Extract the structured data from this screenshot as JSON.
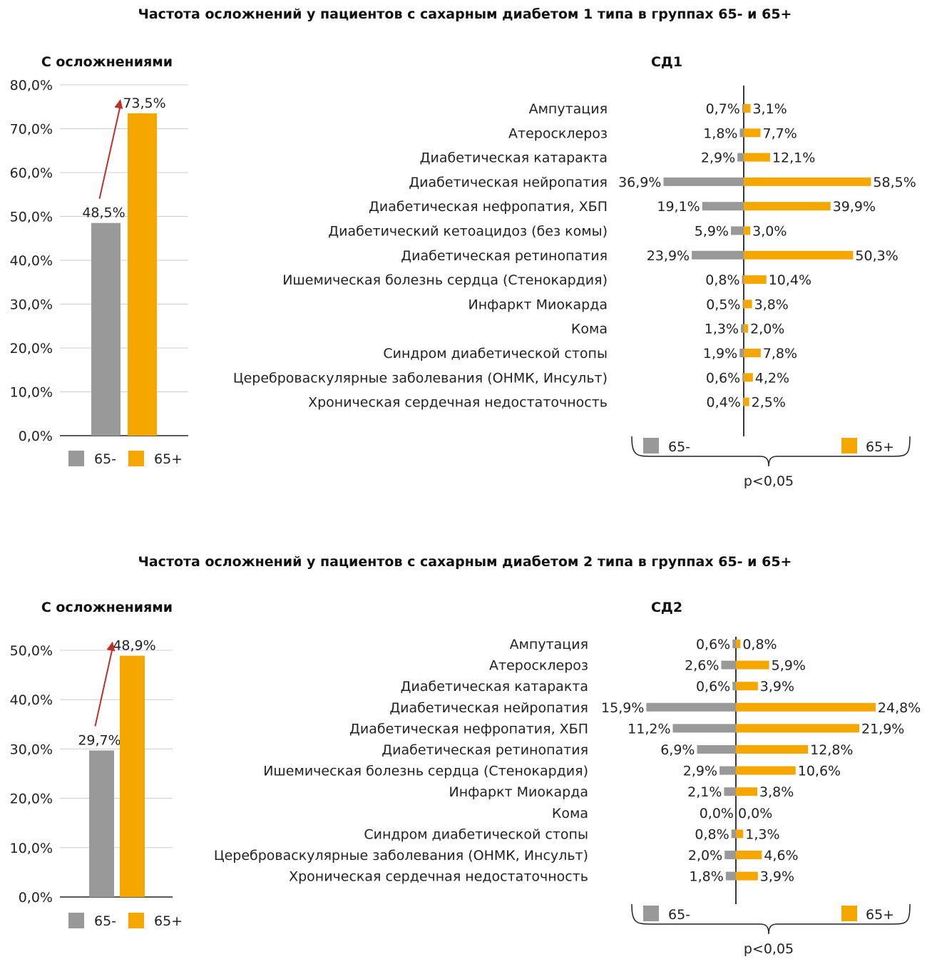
{
  "colors": {
    "group_a": "#999999",
    "group_b": "#f5a700",
    "arrow": "#c0302a",
    "grid": "#cccccc",
    "axis": "#222222"
  },
  "chart_data": [
    {
      "type": "bar",
      "title": "Частота осложнений у пациентов с сахарным диабетом 1 типа в группах 65- и 65+",
      "subtitle": "С осложнениями",
      "categories": [
        "65-",
        "65+"
      ],
      "values": [
        48.5,
        73.5
      ],
      "value_labels": [
        "48,5%",
        "73,5%"
      ],
      "ylim": [
        0,
        80
      ],
      "yticks": [
        "0,0%",
        "10,0%",
        "20,0%",
        "30,0%",
        "40,0%",
        "50,0%",
        "60,0%",
        "70,0%",
        "80,0%"
      ],
      "grid": true,
      "legend": [
        "65-",
        "65+"
      ],
      "legend_position": "bottom"
    },
    {
      "type": "bar",
      "orientation": "horizontal-diverging",
      "title": "СД1",
      "categories": [
        "Ампутация",
        "Атеросклероз",
        "Диабетическая катаракта",
        "Диабетическая нейропатия",
        "Диабетическая нефропатия, ХБП",
        "Диабетический кетоацидоз (без комы)",
        "Диабетическая ретинопатия",
        "Ишемическая болезнь сердца (Стенокардия)",
        "Инфаркт Миокарда",
        "Кома",
        "Синдром диабетической стопы",
        "Цереброваскулярные заболевания (ОНМК, Инсульт)",
        "Хроническая сердечная недостаточность"
      ],
      "series": [
        {
          "name": "65-",
          "values": [
            0.7,
            1.8,
            2.9,
            36.9,
            19.1,
            5.9,
            23.9,
            0.8,
            0.5,
            1.3,
            1.9,
            0.6,
            0.4
          ],
          "labels": [
            "0,7%",
            "1,8%",
            "2,9%",
            "36,9%",
            "19,1%",
            "5,9%",
            "23,9%",
            "0,8%",
            "0,5%",
            "1,3%",
            "1,9%",
            "0,6%",
            "0,4%"
          ]
        },
        {
          "name": "65+",
          "values": [
            3.1,
            7.7,
            12.1,
            58.5,
            39.9,
            3.0,
            50.3,
            10.4,
            3.8,
            2.0,
            7.8,
            4.2,
            2.5
          ],
          "labels": [
            "3,1%",
            "7,7%",
            "12,1%",
            "58,5%",
            "39,9%",
            "3,0%",
            "50,3%",
            "10,4%",
            "3,8%",
            "2,0%",
            "7,8%",
            "4,2%",
            "2,5%"
          ]
        }
      ],
      "annotation": "p<0,05",
      "legend_position": "bottom"
    },
    {
      "type": "bar",
      "title": "Частота осложнений у пациентов с сахарным диабетом 2 типа в группах 65- и 65+",
      "subtitle": "С осложнениями",
      "categories": [
        "65-",
        "65+"
      ],
      "values": [
        29.7,
        48.9
      ],
      "value_labels": [
        "29,7%",
        "48,9%"
      ],
      "ylim": [
        0,
        50
      ],
      "yticks": [
        "0,0%",
        "10,0%",
        "20,0%",
        "30,0%",
        "40,0%",
        "50,0%"
      ],
      "grid": true,
      "legend": [
        "65-",
        "65+"
      ],
      "legend_position": "bottom"
    },
    {
      "type": "bar",
      "orientation": "horizontal-diverging",
      "title": "СД2",
      "categories": [
        "Ампутация",
        "Атеросклероз",
        "Диабетическая катаракта",
        "Диабетическая нейропатия",
        "Диабетическая нефропатия, ХБП",
        "Диабетическая ретинопатия",
        "Ишемическая болезнь сердца (Стенокардия)",
        "Инфаркт Миокарда",
        "Кома",
        "Синдром диабетической стопы",
        "Цереброваскулярные заболевания (ОНМК, Инсульт)",
        "Хроническая сердечная недостаточность"
      ],
      "series": [
        {
          "name": "65-",
          "values": [
            0.6,
            2.6,
            0.6,
            15.9,
            11.2,
            6.9,
            2.9,
            2.1,
            0.0,
            0.8,
            2.0,
            1.8
          ],
          "labels": [
            "0,6%",
            "2,6%",
            "0,6%",
            "15,9%",
            "11,2%",
            "6,9%",
            "2,9%",
            "2,1%",
            "0,0%",
            "0,8%",
            "2,0%",
            "1,8%"
          ]
        },
        {
          "name": "65+",
          "values": [
            0.8,
            5.9,
            3.9,
            24.8,
            21.9,
            12.8,
            10.6,
            3.8,
            0.0,
            1.3,
            4.6,
            3.9
          ],
          "labels": [
            "0,8%",
            "5,9%",
            "3,9%",
            "24,8%",
            "21,9%",
            "12,8%",
            "10,6%",
            "3,8%",
            "0,0%",
            "1,3%",
            "4,6%",
            "3,9%"
          ]
        }
      ],
      "annotation": "p<0,05",
      "legend_position": "bottom"
    }
  ]
}
